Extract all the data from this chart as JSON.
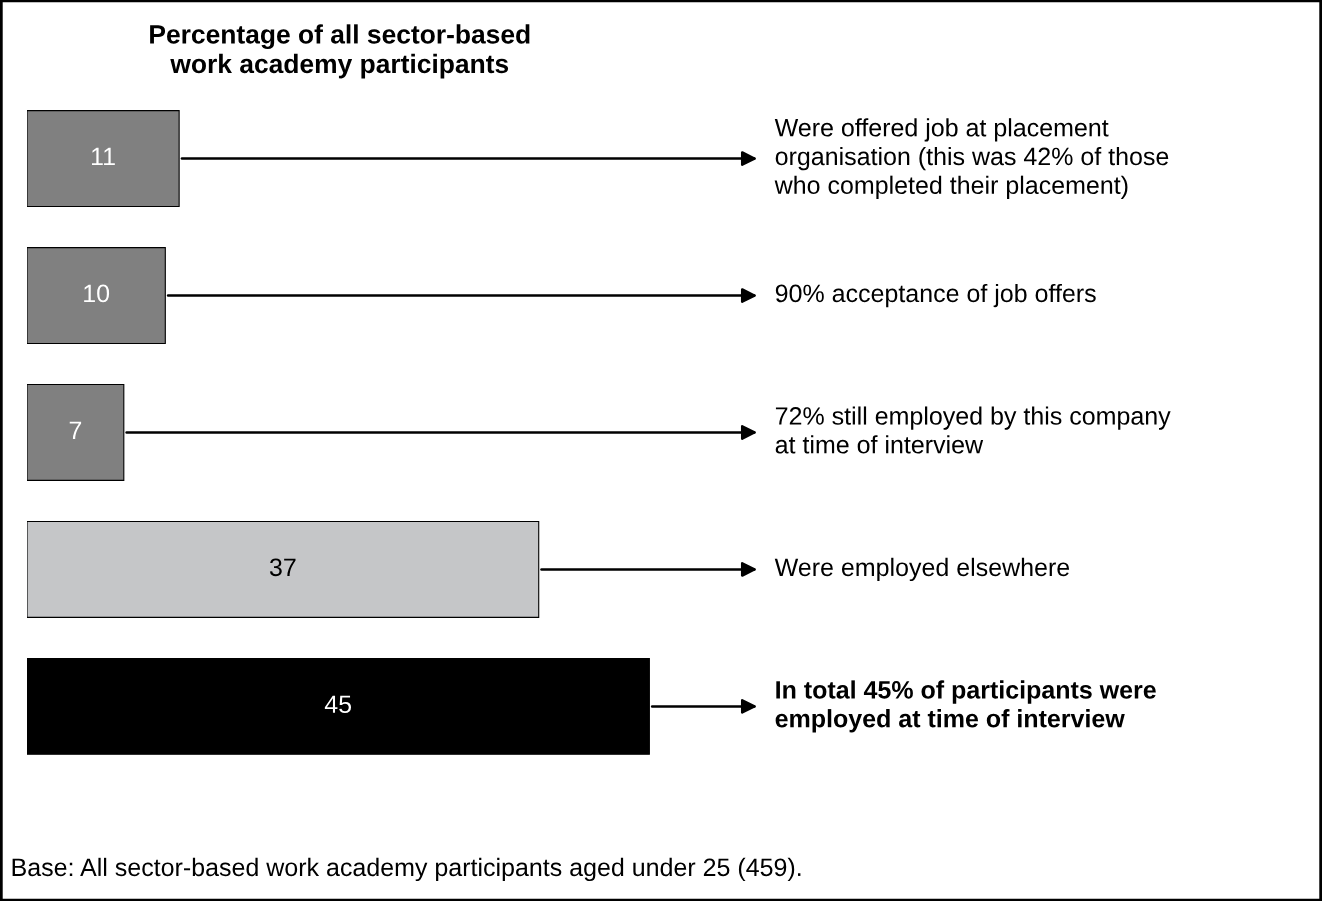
{
  "chart_data": {
    "type": "bar",
    "orientation": "horizontal",
    "title": "Percentage of all sector-based\nwork academy participants",
    "categories": [
      null,
      null,
      null,
      null,
      null
    ],
    "values": [
      11,
      10,
      7,
      37,
      45
    ],
    "colors": [
      "#808080",
      "#808080",
      "#808080",
      "#c5c6c8",
      "#000000"
    ],
    "data_labels": true,
    "tick_labels": false,
    "annotations": [
      "Were offered job at placement\norganisation (this was 42% of those\nwho completed their placement)",
      "90% acceptance of job offers",
      "72% still employed by this company\nat time of interview",
      "Were employed elsewhere",
      "In total 45% of participants were\nemployed at time of interview",
      "Base: All sector-based work academy participants aged under 25 (459)."
    ]
  }
}
